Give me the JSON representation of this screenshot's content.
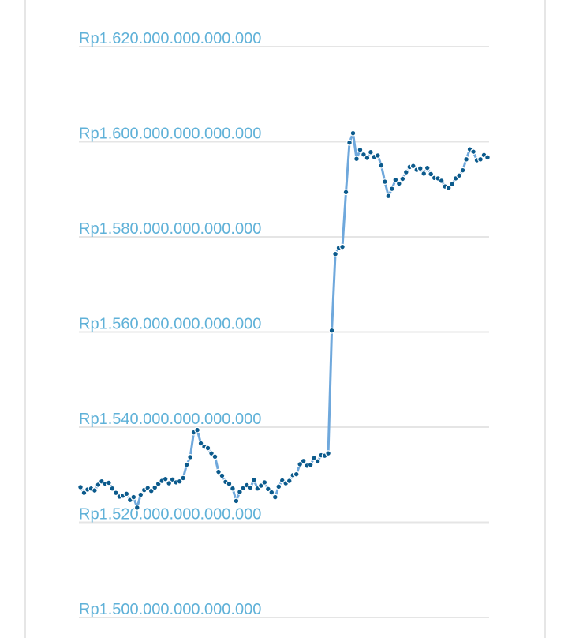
{
  "chart_data": {
    "type": "line",
    "title": "",
    "xlabel": "",
    "ylabel": "",
    "ylim": [
      1500000000000000,
      1620000000000000
    ],
    "y_tick_labels": [
      "Rp1.620.000.000.000.000",
      "Rp1.600.000.000.000.000",
      "Rp1.580.000.000.000.000",
      "Rp1.560.000.000.000.000",
      "Rp1.540.000.000.000.000",
      "Rp1.520.000.000.000.000",
      "Rp1.500.000.000.000.000"
    ],
    "y_tick_values": [
      1620000000000000,
      1600000000000000,
      1580000000000000,
      1560000000000000,
      1540000000000000,
      1520000000000000,
      1500000000000000
    ],
    "grid": true,
    "markers": true,
    "colors": {
      "line": "#6fa8dc",
      "marker": "#0b5a8c",
      "tick_label": "#5fb1d8",
      "grid": "#e5e5e5"
    },
    "series": [
      {
        "values": [
          1527400000000000,
          1526200000000000,
          1526900000000000,
          1527100000000000,
          1526700000000000,
          1527900000000000,
          1528600000000000,
          1528100000000000,
          1528300000000000,
          1527100000000000,
          1526200000000000,
          1525400000000000,
          1525600000000000,
          1526000000000000,
          1524700000000000,
          1525300000000000,
          1523100000000000,
          1525800000000000,
          1526800000000000,
          1527200000000000,
          1526600000000000,
          1527300000000000,
          1528100000000000,
          1528700000000000,
          1529100000000000,
          1528200000000000,
          1529000000000000,
          1528400000000000,
          1528600000000000,
          1529300000000000,
          1532100000000000,
          1533700000000000,
          1538900000000000,
          1539400000000000,
          1536600000000000,
          1535900000000000,
          1535600000000000,
          1534500000000000,
          1533800000000000,
          1530600000000000,
          1529800000000000,
          1528500000000000,
          1528100000000000,
          1527100000000000,
          1524500000000000,
          1526400000000000,
          1527200000000000,
          1527800000000000,
          1527300000000000,
          1528900000000000,
          1527100000000000,
          1527700000000000,
          1528400000000000,
          1527000000000000,
          1526300000000000,
          1525300000000000,
          1527500000000000,
          1528800000000000,
          1528200000000000,
          1528700000000000,
          1529900000000000,
          1530100000000000,
          1532200000000000,
          1532900000000000,
          1531900000000000,
          1532100000000000,
          1533500000000000,
          1532800000000000,
          1534100000000000,
          1534000000000000,
          1534500000000000,
          1560300000000000,
          1576400000000000,
          1577700000000000,
          1577900000000000,
          1589400000000000,
          1599800000000000,
          1601800000000000,
          1596400000000000,
          1598300000000000,
          1597300000000000,
          1596600000000000,
          1597800000000000,
          1596800000000000,
          1597100000000000,
          1595000000000000,
          1591600000000000,
          1588600000000000,
          1590100000000000,
          1592000000000000,
          1591200000000000,
          1592200000000000,
          1593600000000000,
          1594700000000000,
          1594900000000000,
          1594100000000000,
          1594400000000000,
          1593300000000000,
          1594500000000000,
          1593200000000000,
          1592400000000000,
          1592300000000000,
          1591800000000000,
          1590600000000000,
          1590300000000000,
          1591100000000000,
          1592300000000000,
          1592900000000000,
          1594000000000000,
          1596300000000000,
          1598400000000000,
          1597900000000000,
          1596100000000000,
          1596300000000000,
          1597200000000000,
          1596700000000000
        ]
      }
    ]
  }
}
